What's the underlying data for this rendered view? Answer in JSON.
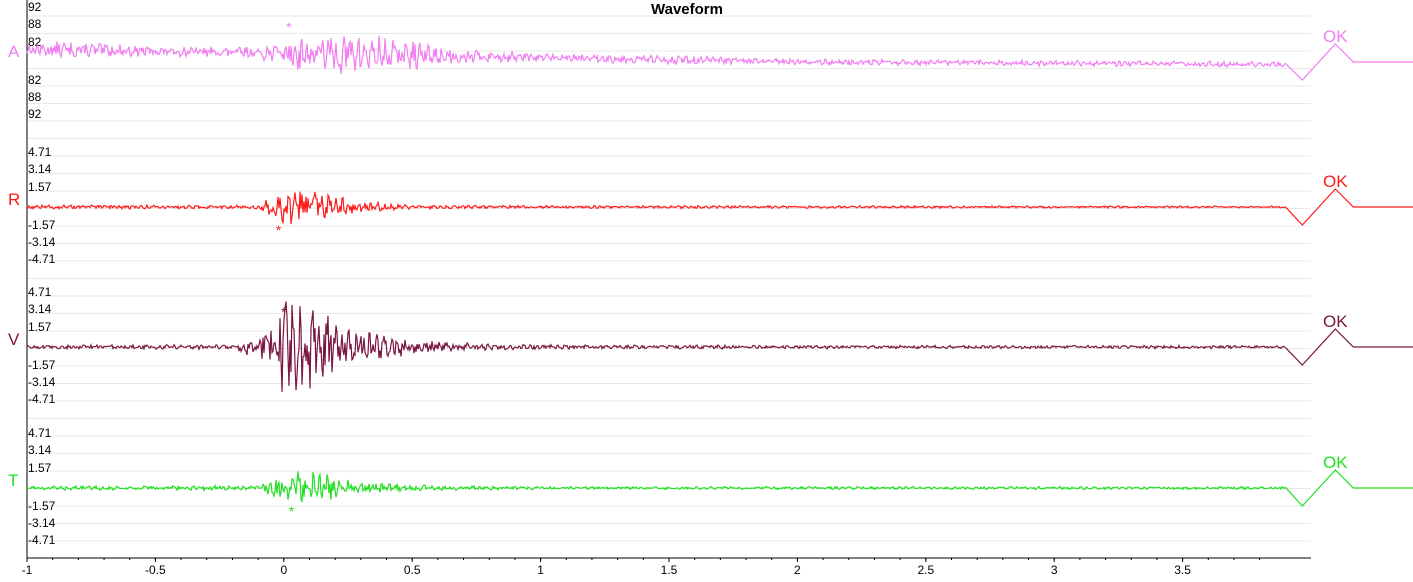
{
  "chart_data": {
    "type": "line",
    "title": "Waveform",
    "x_ticks": [
      "-1",
      "-0.5",
      "0",
      "0.5",
      "1",
      "1.5",
      "2",
      "2.5",
      "3",
      "3.5"
    ],
    "x_tick_values": [
      -1,
      -0.5,
      0,
      0.5,
      1,
      1.5,
      2,
      2.5,
      3,
      3.5
    ],
    "xlim": [
      -1,
      4.0
    ],
    "grid": true,
    "channels": [
      {
        "name": "A",
        "status": "OK",
        "color": "#f27df2",
        "y_ticks": [
          "92",
          "88",
          "82",
          "82",
          "88",
          "92"
        ],
        "event_marker": "*",
        "event_time": 0.02,
        "marker_above": true,
        "envelope": {
          "t": [
            -1,
            -0.9,
            -0.5,
            -0.1,
            0.0,
            0.05,
            0.15,
            0.3,
            0.5,
            0.7,
            1.0,
            1.5,
            2.0,
            3.0,
            3.9
          ],
          "amplitude": [
            0.12,
            0.18,
            0.1,
            0.12,
            0.3,
            0.4,
            0.4,
            0.42,
            0.3,
            0.14,
            0.08,
            0.09,
            0.06,
            0.06,
            0.06
          ]
        },
        "offset": {
          "t": [
            -1,
            0,
            2,
            3.9
          ],
          "values": [
            0.28,
            0.2,
            0.0,
            -0.05
          ]
        }
      },
      {
        "name": "R",
        "status": "OK",
        "color": "#ff1a1a",
        "y_ticks": [
          "4.71",
          "3.14",
          "1.57",
          "-1.57",
          "-3.14",
          "-4.71"
        ],
        "event_marker": "*",
        "event_time": -0.02,
        "marker_above": false,
        "envelope": {
          "t": [
            -1,
            -0.1,
            -0.05,
            0.0,
            0.15,
            0.3,
            0.5,
            1.0,
            3.9
          ],
          "amplitude": [
            0.04,
            0.04,
            0.2,
            0.4,
            0.28,
            0.12,
            0.04,
            0.03,
            0.02
          ]
        },
        "offset": {
          "t": [
            -1,
            3.9
          ],
          "values": [
            0,
            0
          ]
        }
      },
      {
        "name": "V",
        "status": "OK",
        "color": "#7a1640",
        "y_ticks": [
          "4.71",
          "3.14",
          "1.57",
          "-1.57",
          "-3.14",
          "-4.71"
        ],
        "event_marker": "*",
        "event_time": 0.0,
        "marker_above": true,
        "envelope": {
          "t": [
            -1,
            -0.2,
            -0.05,
            0.0,
            0.1,
            0.25,
            0.5,
            0.8,
            1.2,
            3.9
          ],
          "amplitude": [
            0.04,
            0.05,
            0.35,
            1.0,
            0.9,
            0.4,
            0.14,
            0.06,
            0.04,
            0.03
          ]
        },
        "offset": {
          "t": [
            -1,
            3.9
          ],
          "values": [
            0,
            0
          ]
        }
      },
      {
        "name": "T",
        "status": "OK",
        "color": "#22e022",
        "y_ticks": [
          "4.71",
          "3.14",
          "1.57",
          "-1.57",
          "-3.14",
          "-4.71"
        ],
        "event_marker": "*",
        "event_time": 0.03,
        "marker_above": false,
        "envelope": {
          "t": [
            -1,
            -0.1,
            -0.05,
            0.05,
            0.15,
            0.3,
            0.6,
            1.0,
            3.9
          ],
          "amplitude": [
            0.04,
            0.05,
            0.2,
            0.35,
            0.3,
            0.12,
            0.05,
            0.03,
            0.03
          ]
        },
        "offset": {
          "t": [
            -1,
            3.9
          ],
          "values": [
            0,
            0
          ]
        }
      }
    ]
  }
}
